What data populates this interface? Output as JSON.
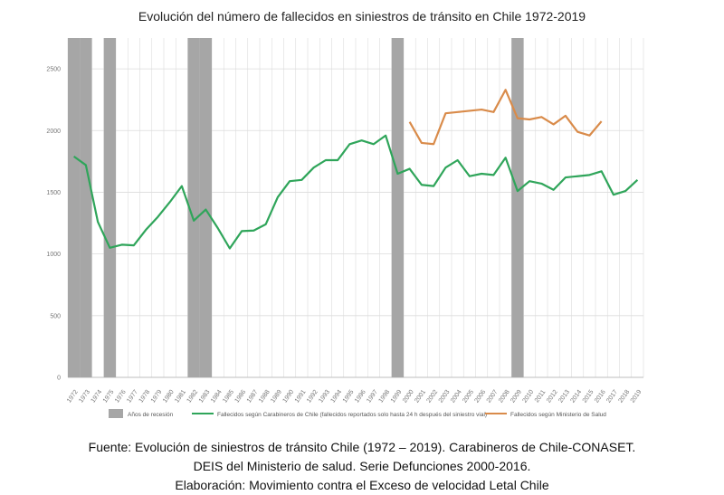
{
  "chart_data": {
    "type": "line",
    "title": "Evolución del número de fallecidos en siniestros de tránsito en Chile 1972-2019",
    "xlabel": "",
    "ylabel": "",
    "ylim": [
      0,
      2750
    ],
    "yticks": [
      0,
      500,
      1000,
      1500,
      2000,
      2500
    ],
    "grid": true,
    "legend_position": "bottom",
    "categories": [
      "1972",
      "1973",
      "1974",
      "1975",
      "1976",
      "1977",
      "1978",
      "1979",
      "1980",
      "1981",
      "1982",
      "1983",
      "1984",
      "1985",
      "1986",
      "1987",
      "1988",
      "1989",
      "1990",
      "1991",
      "1992",
      "1993",
      "1994",
      "1995",
      "1996",
      "1997",
      "1998",
      "1999",
      "2000",
      "2001",
      "2002",
      "2003",
      "2004",
      "2005",
      "2006",
      "2007",
      "2008",
      "2009",
      "2010",
      "2011",
      "2012",
      "2013",
      "2014",
      "2015",
      "2016",
      "2017",
      "2018",
      "2019"
    ],
    "recession_years": [
      "1972",
      "1973",
      "1975",
      "1982",
      "1983",
      "1999",
      "2009"
    ],
    "recession_label": "Años de recesión",
    "series": [
      {
        "name": "Fallecidos según Carabineros de Chile (fallecidos reportados solo hasta 24 h después del siniestro vial)",
        "color": "#2fa55a",
        "values": [
          1790,
          1720,
          1260,
          1050,
          1075,
          1070,
          1195,
          1300,
          1420,
          1550,
          1270,
          1360,
          1210,
          1045,
          1185,
          1190,
          1240,
          1460,
          1590,
          1600,
          1700,
          1760,
          1760,
          1890,
          1920,
          1890,
          1960,
          1650,
          1690,
          1560,
          1550,
          1700,
          1760,
          1630,
          1650,
          1640,
          1780,
          1510,
          1590,
          1570,
          1520,
          1620,
          1630,
          1640,
          1670,
          1480,
          1510,
          1600
        ]
      },
      {
        "name": "Fallecidos según Ministerio de Salud",
        "color": "#d98b4a",
        "values": [
          null,
          null,
          null,
          null,
          null,
          null,
          null,
          null,
          null,
          null,
          null,
          null,
          null,
          null,
          null,
          null,
          null,
          null,
          null,
          null,
          null,
          null,
          null,
          null,
          null,
          null,
          null,
          null,
          2070,
          1900,
          1890,
          2140,
          2150,
          2160,
          2170,
          2150,
          2330,
          2100,
          2090,
          2110,
          2050,
          2120,
          1990,
          1960,
          2075,
          null,
          null,
          null
        ]
      }
    ]
  },
  "colors": {
    "recession": "#a6a6a6",
    "grid": "#dcdcdc",
    "axis": "#bdbdbd"
  },
  "notes": {
    "line1": "Fuente: Evolución de siniestros de tránsito Chile (1972 – 2019). Carabineros de Chile-CONASET.",
    "line2": "DEIS del Ministerio de salud. Serie Defunciones 2000-2016.",
    "line3": "Elaboración: Movimiento contra el Exceso de velocidad Letal Chile"
  }
}
